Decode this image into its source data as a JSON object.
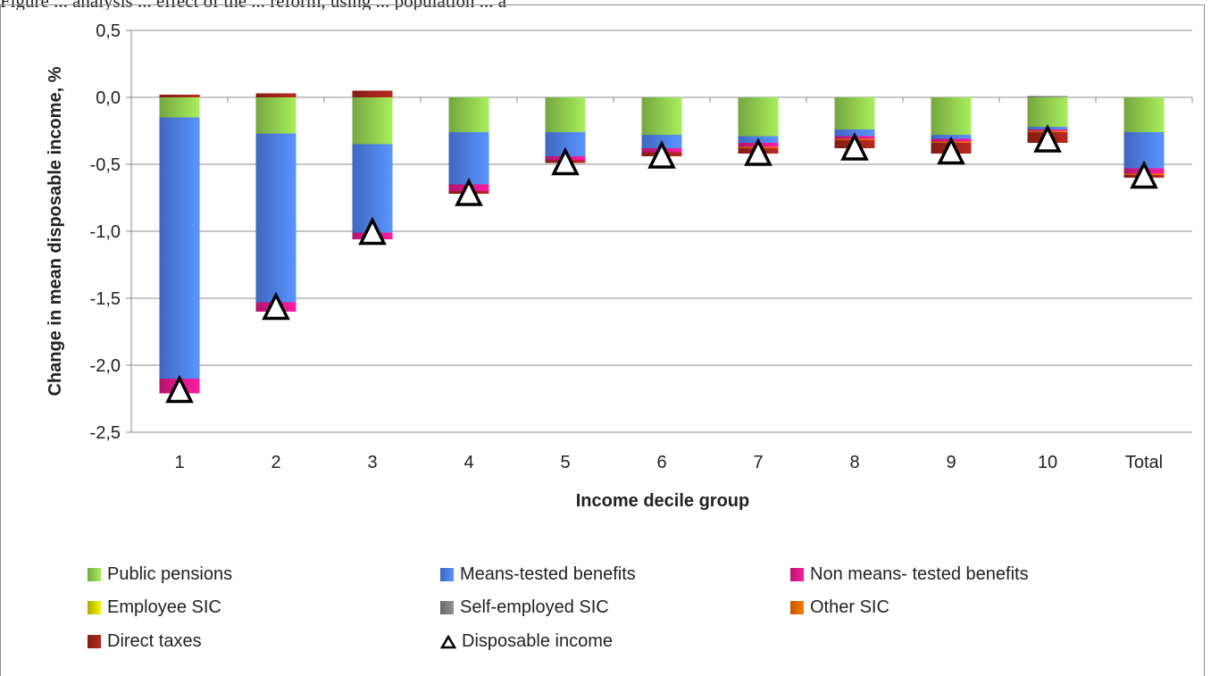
{
  "caption_fragment": "Figure ... analysis ... effect of the ... reform, using ... population ... a",
  "chart_data": {
    "type": "bar",
    "stacked": true,
    "title": "",
    "xlabel": "Income decile group",
    "ylabel": "Change in mean disposable income, %",
    "ylim": [
      -2.5,
      0.5
    ],
    "yticks": [
      0.5,
      0.0,
      -0.5,
      -1.0,
      -1.5,
      -2.0,
      -2.5
    ],
    "ytick_labels": [
      "0,5",
      "0,0",
      "-0,5",
      "-1,0",
      "-1,5",
      "-2,0",
      "-2,5"
    ],
    "grid": true,
    "legend_position": "bottom",
    "categories": [
      "1",
      "2",
      "3",
      "4",
      "5",
      "6",
      "7",
      "8",
      "9",
      "10",
      "Total"
    ],
    "series": [
      {
        "name": "Public pensions",
        "color": "#92d050",
        "values": [
          -0.15,
          -0.27,
          -0.35,
          -0.26,
          -0.26,
          -0.28,
          -0.29,
          -0.24,
          -0.28,
          -0.22,
          -0.26
        ]
      },
      {
        "name": "Means-tested benefits",
        "color": "#4f81f0",
        "values": [
          -1.95,
          -1.26,
          -0.66,
          -0.39,
          -0.18,
          -0.1,
          -0.05,
          -0.05,
          -0.03,
          -0.02,
          -0.27
        ]
      },
      {
        "name": "Non means- tested benefits",
        "color": "#e0198a",
        "values": [
          -0.11,
          -0.07,
          -0.05,
          -0.05,
          -0.03,
          -0.03,
          -0.03,
          -0.02,
          -0.02,
          -0.01,
          -0.04
        ]
      },
      {
        "name": "Employee SIC",
        "color": "#d6d600",
        "values": [
          0,
          0,
          0,
          0,
          0,
          0,
          0,
          0,
          0,
          0,
          0
        ]
      },
      {
        "name": "Self-employed SIC",
        "color": "#808080",
        "values": [
          0,
          0,
          0,
          0,
          0,
          0,
          0,
          0,
          0,
          0.01,
          0
        ]
      },
      {
        "name": "Other SIC",
        "color": "#f26b00",
        "values": [
          0,
          0,
          0,
          0,
          0,
          0,
          -0.01,
          -0.01,
          -0.01,
          -0.01,
          -0.01
        ]
      },
      {
        "name": "Direct taxes",
        "color": "#a3241b",
        "values": [
          0.02,
          0.03,
          0.05,
          -0.02,
          -0.02,
          -0.03,
          -0.04,
          -0.06,
          -0.08,
          -0.08,
          -0.02
        ]
      }
    ],
    "markers": {
      "name": "Disposable income",
      "values": [
        -2.19,
        -1.57,
        -1.01,
        -0.72,
        -0.49,
        -0.44,
        -0.42,
        -0.38,
        -0.41,
        -0.32,
        -0.59
      ]
    }
  }
}
